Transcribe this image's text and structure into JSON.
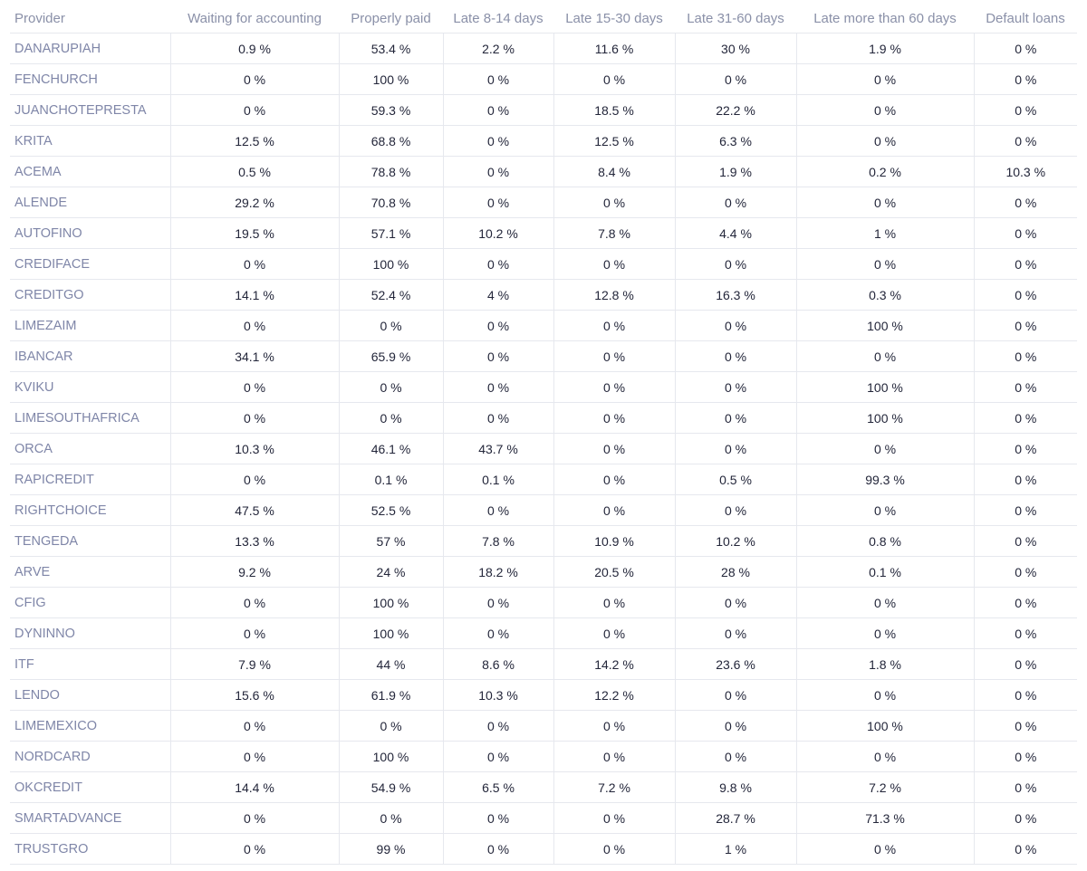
{
  "table": {
    "headers": [
      "Provider",
      "Waiting for accounting",
      "Properly paid",
      "Late 8-14 days",
      "Late 15-30 days",
      "Late 31-60 days",
      "Late more than 60 days",
      "Default loans"
    ],
    "rows": [
      [
        "DANARUPIAH",
        "0.9 %",
        "53.4 %",
        "2.2 %",
        "11.6 %",
        "30 %",
        "1.9 %",
        "0 %"
      ],
      [
        "FENCHURCH",
        "0 %",
        "100 %",
        "0 %",
        "0 %",
        "0 %",
        "0 %",
        "0 %"
      ],
      [
        "JUANCHOTEPRESTA",
        "0 %",
        "59.3 %",
        "0 %",
        "18.5 %",
        "22.2 %",
        "0 %",
        "0 %"
      ],
      [
        "KRITA",
        "12.5 %",
        "68.8 %",
        "0 %",
        "12.5 %",
        "6.3 %",
        "0 %",
        "0 %"
      ],
      [
        "ACEMA",
        "0.5 %",
        "78.8 %",
        "0 %",
        "8.4 %",
        "1.9 %",
        "0.2 %",
        "10.3 %"
      ],
      [
        "ALENDE",
        "29.2 %",
        "70.8 %",
        "0 %",
        "0 %",
        "0 %",
        "0 %",
        "0 %"
      ],
      [
        "AUTOFINO",
        "19.5 %",
        "57.1 %",
        "10.2 %",
        "7.8 %",
        "4.4 %",
        "1 %",
        "0 %"
      ],
      [
        "CREDIFACE",
        "0 %",
        "100 %",
        "0 %",
        "0 %",
        "0 %",
        "0 %",
        "0 %"
      ],
      [
        "CREDITGO",
        "14.1 %",
        "52.4 %",
        "4 %",
        "12.8 %",
        "16.3 %",
        "0.3 %",
        "0 %"
      ],
      [
        "LIMEZAIM",
        "0 %",
        "0 %",
        "0 %",
        "0 %",
        "0 %",
        "100 %",
        "0 %"
      ],
      [
        "IBANCAR",
        "34.1 %",
        "65.9 %",
        "0 %",
        "0 %",
        "0 %",
        "0 %",
        "0 %"
      ],
      [
        "KVIKU",
        "0 %",
        "0 %",
        "0 %",
        "0 %",
        "0 %",
        "100 %",
        "0 %"
      ],
      [
        "LIMESOUTHAFRICA",
        "0 %",
        "0 %",
        "0 %",
        "0 %",
        "0 %",
        "100 %",
        "0 %"
      ],
      [
        "ORCA",
        "10.3 %",
        "46.1 %",
        "43.7 %",
        "0 %",
        "0 %",
        "0 %",
        "0 %"
      ],
      [
        "RAPICREDIT",
        "0 %",
        "0.1 %",
        "0.1 %",
        "0 %",
        "0.5 %",
        "99.3 %",
        "0 %"
      ],
      [
        "RIGHTCHOICE",
        "47.5 %",
        "52.5 %",
        "0 %",
        "0 %",
        "0 %",
        "0 %",
        "0 %"
      ],
      [
        "TENGEDA",
        "13.3 %",
        "57 %",
        "7.8 %",
        "10.9 %",
        "10.2 %",
        "0.8 %",
        "0 %"
      ],
      [
        "ARVE",
        "9.2 %",
        "24 %",
        "18.2 %",
        "20.5 %",
        "28 %",
        "0.1 %",
        "0 %"
      ],
      [
        "CFIG",
        "0 %",
        "100 %",
        "0 %",
        "0 %",
        "0 %",
        "0 %",
        "0 %"
      ],
      [
        "DYNINNO",
        "0 %",
        "100 %",
        "0 %",
        "0 %",
        "0 %",
        "0 %",
        "0 %"
      ],
      [
        "ITF",
        "7.9 %",
        "44 %",
        "8.6 %",
        "14.2 %",
        "23.6 %",
        "1.8 %",
        "0 %"
      ],
      [
        "LENDO",
        "15.6 %",
        "61.9 %",
        "10.3 %",
        "12.2 %",
        "0 %",
        "0 %",
        "0 %"
      ],
      [
        "LIMEMEXICO",
        "0 %",
        "0 %",
        "0 %",
        "0 %",
        "0 %",
        "100 %",
        "0 %"
      ],
      [
        "NORDCARD",
        "0 %",
        "100 %",
        "0 %",
        "0 %",
        "0 %",
        "0 %",
        "0 %"
      ],
      [
        "OKCREDIT",
        "14.4 %",
        "54.9 %",
        "6.5 %",
        "7.2 %",
        "9.8 %",
        "7.2 %",
        "0 %"
      ],
      [
        "SMARTADVANCE",
        "0 %",
        "0 %",
        "0 %",
        "0 %",
        "28.7 %",
        "71.3 %",
        "0 %"
      ],
      [
        "TRUSTGRO",
        "0 %",
        "99 %",
        "0 %",
        "0 %",
        "1 %",
        "0 %",
        "0 %"
      ]
    ]
  }
}
